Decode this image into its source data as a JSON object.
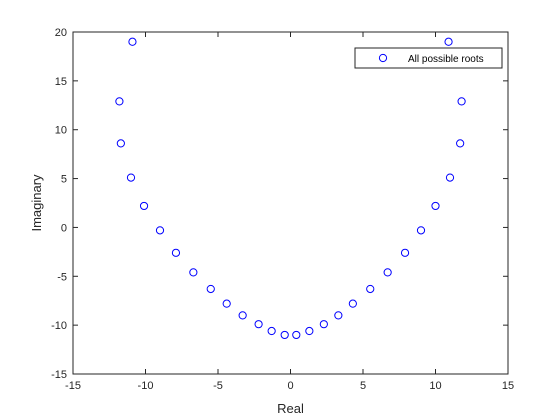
{
  "chart_data": {
    "type": "scatter",
    "xlabel": "Real",
    "ylabel": "Imaginary",
    "xlim": [
      -15,
      15
    ],
    "ylim": [
      -15,
      20
    ],
    "xticks": [
      -15,
      -10,
      -5,
      0,
      5,
      10,
      15
    ],
    "yticks": [
      -15,
      -10,
      -5,
      0,
      5,
      10,
      15,
      20
    ],
    "grid": false,
    "legend_position": "top-right",
    "marker_color": "#0000ff",
    "series": [
      {
        "name": "All possible roots",
        "marker": "circle",
        "points": [
          [
            -10.9,
            19.0
          ],
          [
            -11.8,
            12.9
          ],
          [
            -11.7,
            8.6
          ],
          [
            -11.0,
            5.1
          ],
          [
            -10.1,
            2.2
          ],
          [
            -9.0,
            -0.3
          ],
          [
            -7.9,
            -2.6
          ],
          [
            -6.7,
            -4.6
          ],
          [
            -5.5,
            -6.3
          ],
          [
            -4.4,
            -7.8
          ],
          [
            -3.3,
            -9.0
          ],
          [
            -2.2,
            -9.9
          ],
          [
            -1.3,
            -10.6
          ],
          [
            -0.4,
            -11.0
          ],
          [
            0.4,
            -11.0
          ],
          [
            1.3,
            -10.6
          ],
          [
            2.3,
            -9.9
          ],
          [
            3.3,
            -9.0
          ],
          [
            4.3,
            -7.8
          ],
          [
            5.5,
            -6.3
          ],
          [
            6.7,
            -4.6
          ],
          [
            7.9,
            -2.6
          ],
          [
            9.0,
            -0.3
          ],
          [
            10.0,
            2.2
          ],
          [
            11.0,
            5.1
          ],
          [
            11.7,
            8.6
          ],
          [
            11.8,
            12.9
          ],
          [
            10.9,
            19.0
          ]
        ]
      }
    ]
  }
}
